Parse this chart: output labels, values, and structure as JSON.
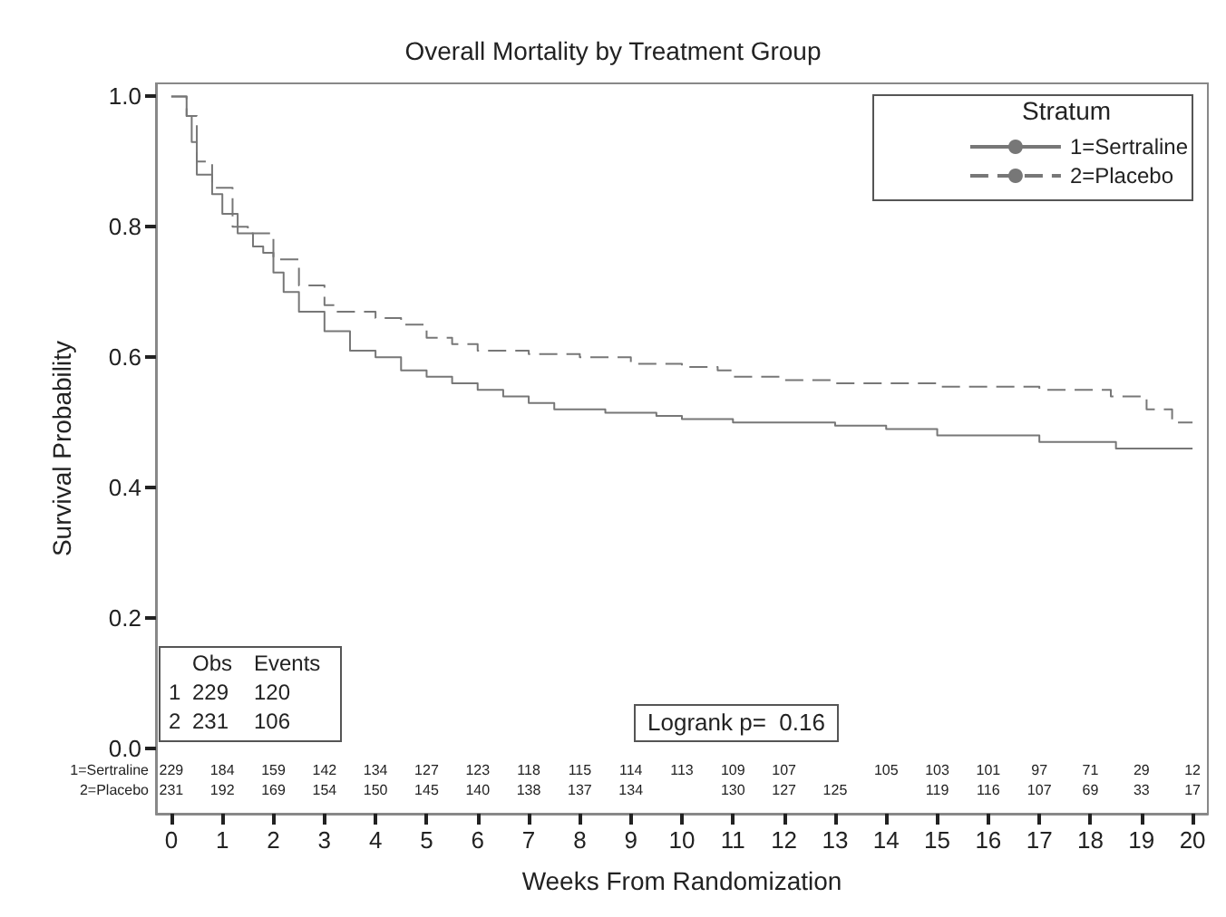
{
  "chart_data": {
    "type": "step",
    "title": "Overall Mortality by Treatment Group",
    "xlabel": "Weeks From Randomization",
    "ylabel": "Survival Probability",
    "legend_title": "Stratum",
    "legend": "top right",
    "grid": false,
    "marker": "none",
    "xlim": [
      -0.3,
      20.3
    ],
    "xticks": [
      0,
      1,
      2,
      3,
      4,
      5,
      6,
      7,
      8,
      9,
      10,
      11,
      12,
      13,
      14,
      15,
      16,
      17,
      18,
      19,
      20
    ],
    "ylim": [
      -0.1,
      1.02
    ],
    "yticks": [
      {
        "value": 0,
        "label": "0.0"
      },
      {
        "value": 0.2,
        "label": "0.2"
      },
      {
        "value": 0.4,
        "label": "0.4"
      },
      {
        "value": 0.6,
        "label": "0.6"
      },
      {
        "value": 0.8,
        "label": "0.8"
      },
      {
        "value": 1,
        "label": "1.0"
      }
    ],
    "series": [
      {
        "name": "1=Sertraline",
        "color": "#777777",
        "line_style": "solid",
        "x": [
          0,
          0.3,
          0.4,
          0.5,
          0.8,
          1,
          1.3,
          1.6,
          1.8,
          2,
          2.2,
          2.5,
          3,
          3.5,
          4,
          4.5,
          5,
          5.5,
          6,
          6.5,
          7,
          7.5,
          8.5,
          9.5,
          10,
          11,
          13,
          14,
          15,
          17,
          18.5,
          20
        ],
        "values": [
          1,
          0.97,
          0.93,
          0.88,
          0.85,
          0.82,
          0.79,
          0.77,
          0.76,
          0.73,
          0.7,
          0.67,
          0.64,
          0.61,
          0.6,
          0.58,
          0.57,
          0.56,
          0.55,
          0.54,
          0.53,
          0.52,
          0.515,
          0.51,
          0.505,
          0.5,
          0.495,
          0.49,
          0.48,
          0.47,
          0.46,
          0.46
        ]
      },
      {
        "name": "2=Placebo",
        "color": "#777777",
        "line_style": "dashed",
        "x": [
          0,
          0.3,
          0.5,
          0.8,
          1.2,
          1.5,
          2,
          2.5,
          3,
          3.2,
          4,
          4.5,
          5,
          5.5,
          6,
          7,
          8,
          9,
          10,
          10.7,
          11,
          12,
          13,
          15,
          17,
          18.4,
          19.1,
          19.6,
          20
        ],
        "values": [
          1,
          0.97,
          0.9,
          0.86,
          0.8,
          0.79,
          0.75,
          0.71,
          0.68,
          0.67,
          0.66,
          0.65,
          0.63,
          0.62,
          0.61,
          0.605,
          0.6,
          0.59,
          0.585,
          0.58,
          0.57,
          0.565,
          0.56,
          0.555,
          0.55,
          0.54,
          0.52,
          0.5,
          0.5
        ]
      }
    ],
    "annotations": [
      "\tObs\tEvents\n1\t229\t120\n2\t231\t106",
      "Logrank p=  0.16",
      "1=Sertraline\t229\t184\t159\t142\t134\t127\t123\t118\t115\t114\t113\t109\t107\t\t105\t103\t101\t97\t71\t29\t12",
      "2=Placebo\t231\t192\t169\t154\t150\t145\t140\t138\t137\t134\t\t130\t127\t125\t\t119\t116\t107\t69\t33\t17"
    ]
  }
}
